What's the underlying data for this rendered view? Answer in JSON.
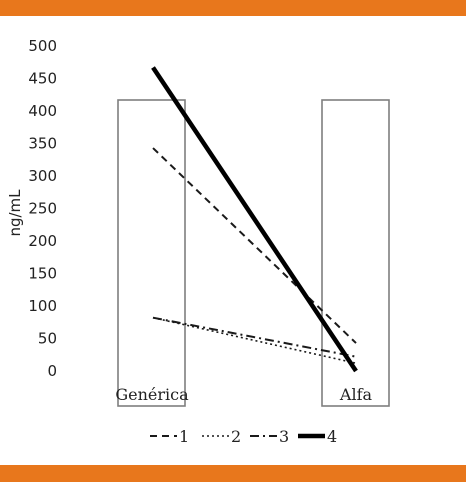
{
  "chart_data": {
    "type": "line",
    "categories": [
      "Genérica",
      "Alfa"
    ],
    "ylabel": "ng/mL",
    "xlabel": "",
    "ylim": [
      0,
      500
    ],
    "yticks": [
      0,
      50,
      100,
      150,
      200,
      250,
      300,
      350,
      400,
      450,
      500
    ],
    "grid": false,
    "legend_position": "bottom",
    "series": [
      {
        "name": "1",
        "values": [
          343,
          43
        ],
        "dash": "dashed",
        "color": "#1a1a1a"
      },
      {
        "name": "2",
        "values": [
          82,
          12
        ],
        "dash": "dotted",
        "color": "#1a1a1a"
      },
      {
        "name": "3",
        "values": [
          82,
          22
        ],
        "dash": "dash-dot",
        "color": "#1a1a1a"
      },
      {
        "name": "4",
        "values": [
          467,
          0
        ],
        "dash": "solid-thick",
        "color": "#000000"
      }
    ]
  },
  "colors": {
    "band": "#e8771c",
    "box_stroke": "#7f7f7f"
  }
}
